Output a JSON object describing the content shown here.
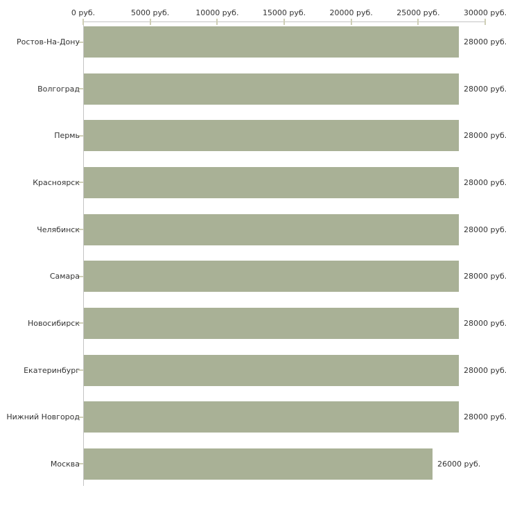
{
  "chart_data": {
    "type": "bar",
    "orientation": "horizontal",
    "title": "",
    "categories": [
      "Ростов-На-Дону",
      "Волгоград",
      "Пермь",
      "Красноярск",
      "Челябинск",
      "Самара",
      "Новосибирск",
      "Екатеринбург",
      "Нижний Новгород",
      "Москва"
    ],
    "values": [
      28000,
      28000,
      28000,
      28000,
      28000,
      28000,
      28000,
      28000,
      28000,
      26000
    ],
    "value_labels": [
      "28000 руб.",
      "28000 руб.",
      "28000 руб.",
      "28000 руб.",
      "28000 руб.",
      "28000 руб.",
      "28000 руб.",
      "28000 руб.",
      "28000 руб.",
      "26000 руб."
    ],
    "x_axis": {
      "position": "top",
      "tick_values": [
        0,
        5000,
        10000,
        15000,
        20000,
        25000,
        30000
      ],
      "tick_labels": [
        "0 руб.",
        "5000 руб.",
        "10000 руб.",
        "15000 руб.",
        "20000 руб.",
        "25000 руб.",
        "30000 руб."
      ]
    },
    "xlim": [
      0,
      30000
    ],
    "unit": "руб.",
    "grid": false,
    "legend": "none",
    "colors": {
      "bar": "#a9b196",
      "axis_line": "#c4c4c4",
      "tick": "#cfcfb6",
      "text": "#333333",
      "background": "#ffffff"
    }
  }
}
